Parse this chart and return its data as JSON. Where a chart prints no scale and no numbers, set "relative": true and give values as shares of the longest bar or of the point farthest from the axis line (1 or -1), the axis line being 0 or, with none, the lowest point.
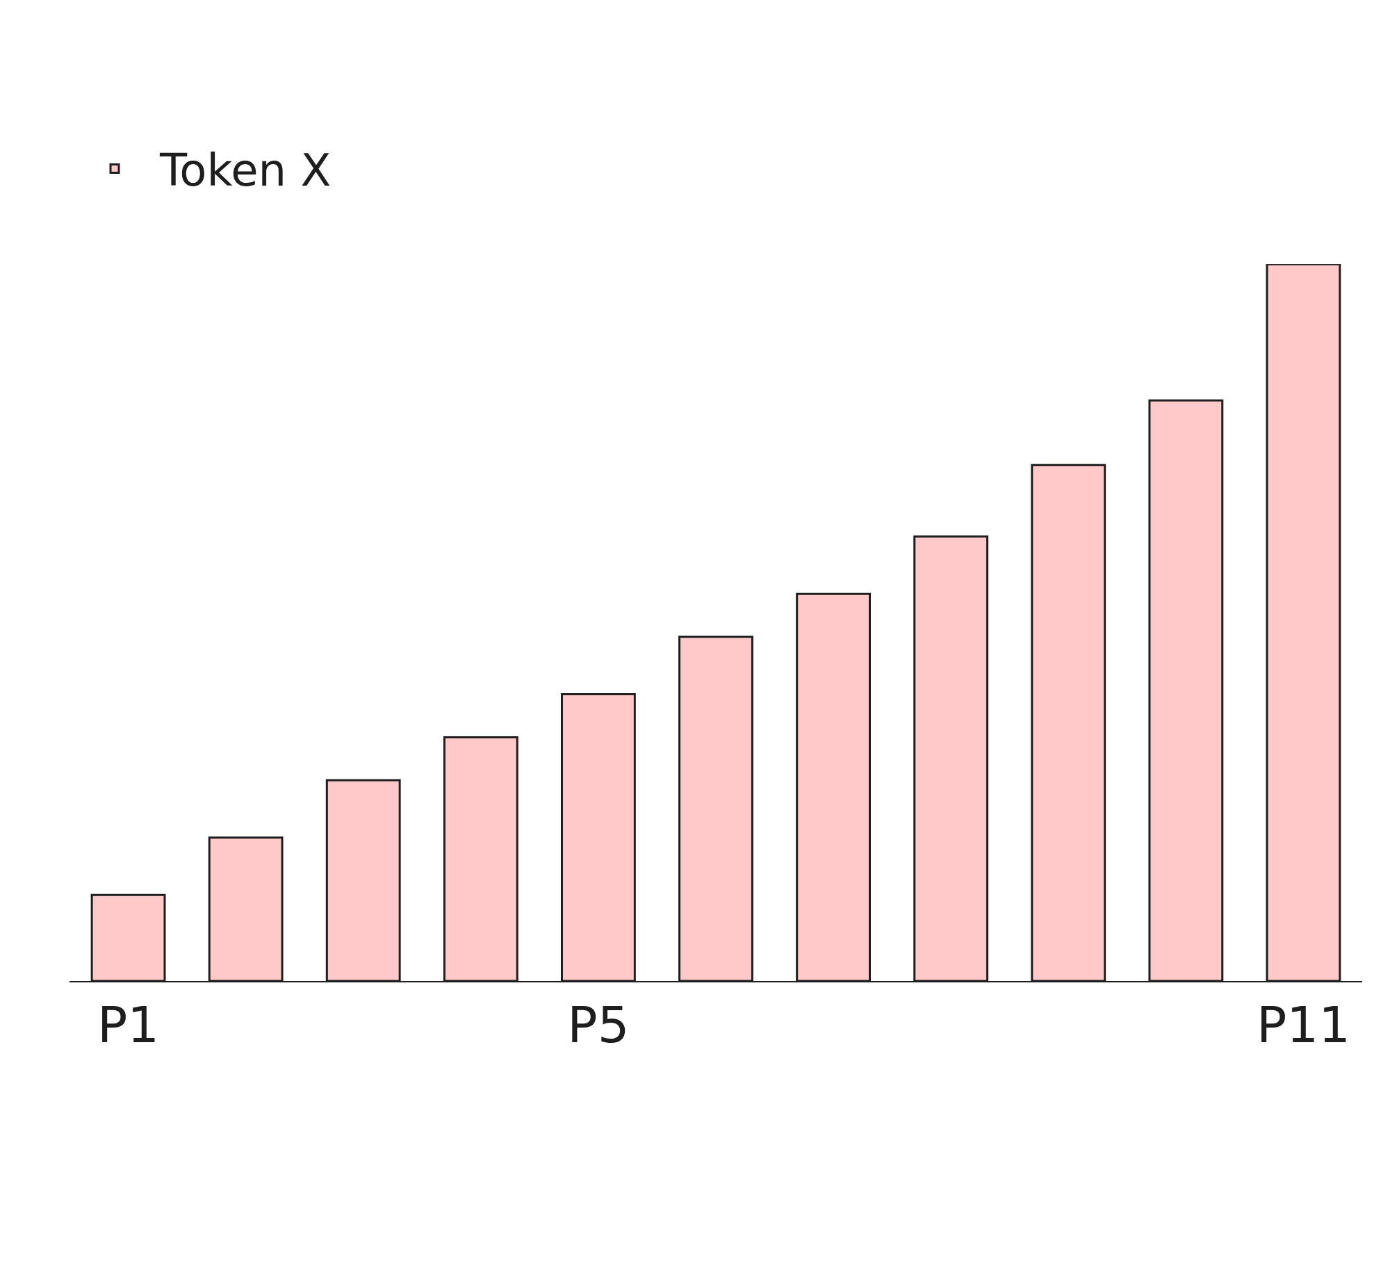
{
  "chart_data": {
    "type": "bar",
    "relative": true,
    "categories": [
      "P1",
      null,
      null,
      null,
      "P5",
      null,
      null,
      null,
      null,
      null,
      "P11"
    ],
    "series": [
      {
        "name": "Token X",
        "color": "#ffc9c9",
        "values": [
          0.12,
          0.2,
          0.28,
          0.34,
          0.4,
          0.48,
          0.54,
          0.62,
          0.72,
          0.81,
          1.0
        ]
      }
    ],
    "legend": "top left"
  }
}
